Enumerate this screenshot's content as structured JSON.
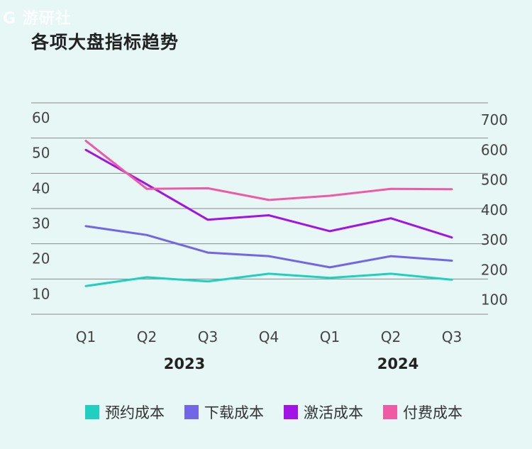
{
  "watermark": "G 游研社",
  "title": "各项大盘指标趋势",
  "chart_data": {
    "type": "line",
    "categories": [
      "Q1",
      "Q2",
      "Q3",
      "Q4",
      "Q1",
      "Q2",
      "Q3"
    ],
    "years": [
      "2023",
      "2024"
    ],
    "left_axis": {
      "ylim": [
        0,
        60
      ],
      "ticks": [
        10,
        20,
        30,
        40,
        50,
        60
      ]
    },
    "right_axis": {
      "ylim": [
        0,
        700
      ],
      "ticks": [
        100,
        200,
        300,
        400,
        500,
        600,
        700
      ]
    },
    "grid": true,
    "legend_position": "bottom",
    "series": [
      {
        "name": "预约成本",
        "color": "#1fcfbf",
        "axis": "left",
        "values": [
          8,
          10.5,
          9.3,
          11.5,
          10.3,
          11.5,
          9.8
        ]
      },
      {
        "name": "下载成本",
        "color": "#7366e6",
        "axis": "left",
        "values": [
          25,
          22.5,
          17.5,
          16.5,
          13.3,
          16.5,
          15.2
        ]
      },
      {
        "name": "激活成本",
        "color": "#a312e6",
        "axis": "right",
        "values": [
          600,
          485,
          367,
          382,
          329,
          372,
          308
        ]
      },
      {
        "name": "付费成本",
        "color": "#ef5aa6",
        "axis": "right",
        "values": [
          630,
          470,
          472,
          433,
          447,
          470,
          469
        ]
      }
    ]
  }
}
